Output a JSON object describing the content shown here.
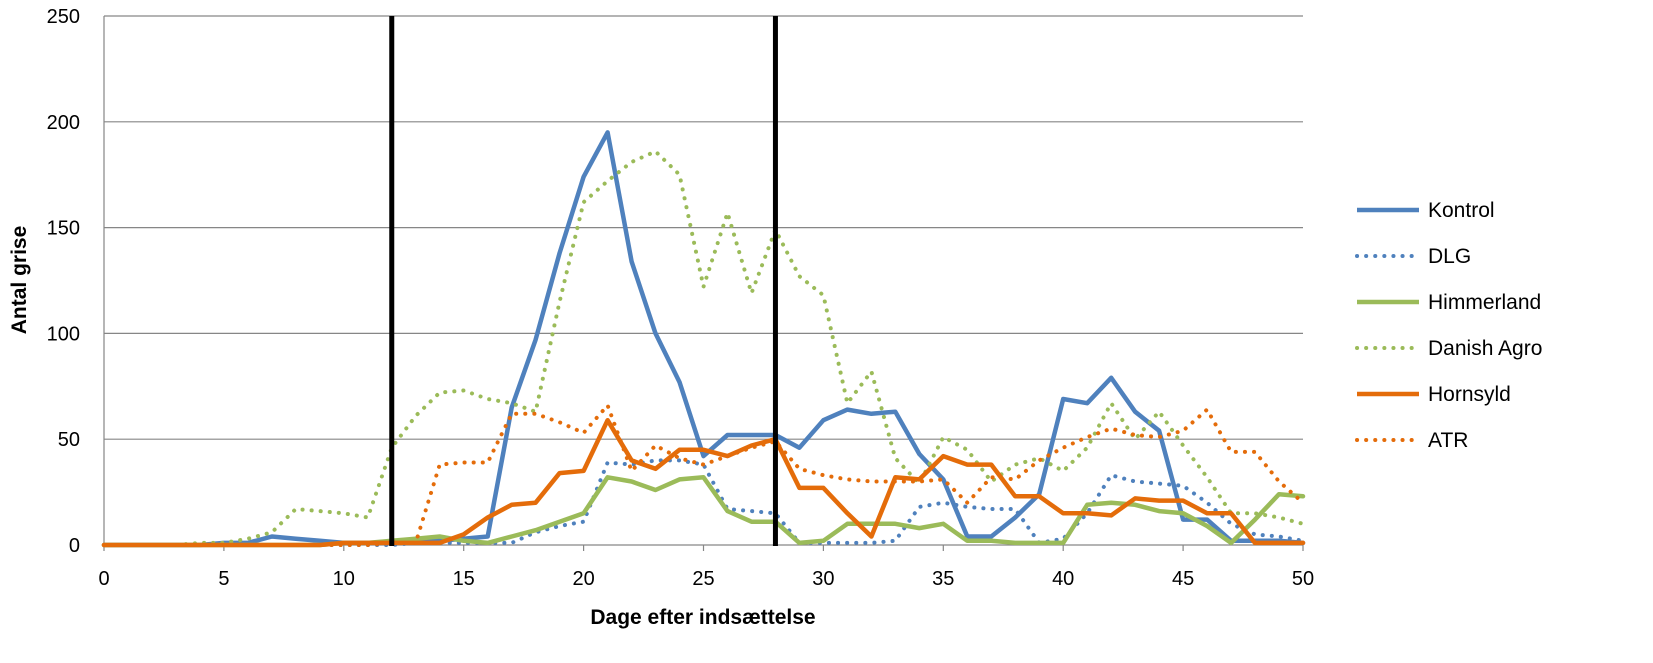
{
  "chart_data": {
    "type": "line",
    "xlabel": "Dage efter indsættelse",
    "ylabel": "Antal grise",
    "xlim": [
      0,
      50
    ],
    "ylim": [
      0,
      250
    ],
    "xticks": [
      0,
      5,
      10,
      15,
      20,
      25,
      30,
      35,
      40,
      45,
      50
    ],
    "yticks": [
      0,
      50,
      100,
      150,
      200,
      250
    ],
    "grid": "horizontal",
    "legend_position": "right",
    "vertical_markers": [
      12,
      28
    ],
    "x": [
      0,
      1,
      2,
      3,
      4,
      5,
      6,
      7,
      8,
      9,
      10,
      11,
      12,
      13,
      14,
      15,
      16,
      17,
      18,
      19,
      20,
      21,
      22,
      23,
      24,
      25,
      26,
      27,
      28,
      29,
      30,
      31,
      32,
      33,
      34,
      35,
      36,
      37,
      38,
      39,
      40,
      41,
      42,
      43,
      44,
      45,
      46,
      47,
      48,
      49,
      50
    ],
    "series": [
      {
        "name": "Kontrol",
        "color": "#4F81BD",
        "style": "solid",
        "values": [
          0,
          0,
          0,
          0,
          0,
          1,
          1,
          4,
          3,
          2,
          1,
          1,
          1,
          2,
          2,
          3,
          4,
          65,
          97,
          138,
          174,
          195,
          134,
          100,
          77,
          42,
          52,
          52,
          52,
          46,
          59,
          64,
          62,
          63,
          43,
          31,
          4,
          4,
          13,
          24,
          69,
          67,
          79,
          63,
          54,
          12,
          12,
          2,
          2,
          2,
          1
        ]
      },
      {
        "name": "DLG",
        "color": "#4F81BD",
        "style": "dotted",
        "values": [
          0,
          0,
          0,
          0,
          0,
          0,
          0,
          0,
          0,
          0,
          0,
          0,
          0,
          1,
          1,
          1,
          1,
          1,
          6,
          9,
          11,
          39,
          38,
          40,
          40,
          38,
          17,
          16,
          15,
          1,
          1,
          1,
          1,
          2,
          18,
          20,
          18,
          17,
          17,
          1,
          3,
          15,
          33,
          30,
          29,
          28,
          20,
          10,
          5,
          4,
          2
        ]
      },
      {
        "name": "Himmerland",
        "color": "#9BBB59",
        "style": "solid",
        "values": [
          0,
          0,
          0,
          0,
          0,
          0,
          0,
          0,
          0,
          0,
          1,
          1,
          2,
          3,
          4,
          2,
          1,
          4,
          7,
          11,
          15,
          32,
          30,
          26,
          31,
          32,
          16,
          11,
          11,
          1,
          2,
          10,
          10,
          10,
          8,
          10,
          2,
          2,
          1,
          1,
          1,
          19,
          20,
          19,
          16,
          15,
          9,
          1,
          12,
          24,
          23
        ]
      },
      {
        "name": "Danish Agro",
        "color": "#9BBB59",
        "style": "dotted",
        "values": [
          0,
          0,
          0,
          0,
          1,
          1,
          3,
          6,
          17,
          16,
          15,
          13,
          46,
          61,
          72,
          73,
          69,
          67,
          63,
          115,
          162,
          172,
          181,
          186,
          175,
          122,
          157,
          119,
          149,
          127,
          118,
          67,
          82,
          41,
          29,
          51,
          45,
          30,
          38,
          41,
          35,
          46,
          67,
          50,
          63,
          47,
          32,
          15,
          15,
          13,
          10
        ]
      },
      {
        "name": "Hornsyld",
        "color": "#E46C0A",
        "style": "solid",
        "values": [
          0,
          0,
          0,
          0,
          0,
          0,
          0,
          0,
          0,
          0,
          1,
          1,
          1,
          1,
          1,
          5,
          13,
          19,
          20,
          34,
          35,
          59,
          40,
          36,
          45,
          45,
          42,
          47,
          50,
          27,
          27,
          15,
          4,
          32,
          31,
          42,
          38,
          38,
          23,
          23,
          15,
          15,
          14,
          22,
          21,
          21,
          15,
          15,
          1,
          1,
          1
        ]
      },
      {
        "name": "ATR",
        "color": "#E46C0A",
        "style": "dotted",
        "values": [
          0,
          0,
          0,
          0,
          0,
          0,
          0,
          0,
          0,
          0,
          0,
          0,
          1,
          1,
          38,
          39,
          39,
          62,
          62,
          58,
          53,
          66,
          35,
          47,
          41,
          38,
          42,
          46,
          49,
          36,
          33,
          31,
          30,
          30,
          30,
          31,
          20,
          32,
          31,
          40,
          46,
          51,
          55,
          52,
          51,
          54,
          64,
          44,
          44,
          30,
          20
        ]
      }
    ]
  }
}
